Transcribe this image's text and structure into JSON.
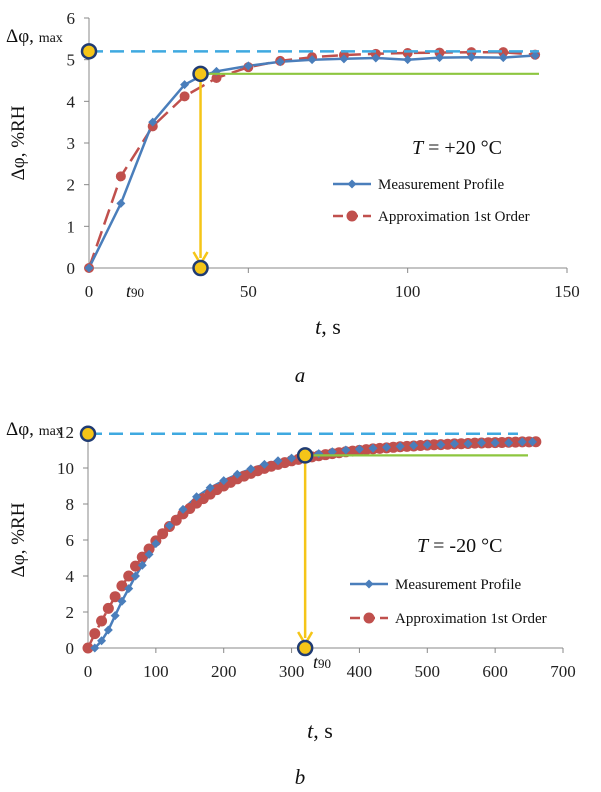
{
  "colors": {
    "measurement": "#4a7ebb",
    "approximation": "#c0504d",
    "max_line": "#3fa9e0",
    "t90_line": "#8dc63f",
    "marker": "#f5c518",
    "marker_ring": "#1f3b73",
    "axis": "#888888"
  },
  "chart_data": [
    {
      "type": "line",
      "panel_label": "a",
      "temperature_label": "T = +20 °C",
      "ylabel": "Δφ, %RH",
      "xlabel": "t, s",
      "ymax_label": "Δφ, max",
      "t90_label": "t90",
      "xlim": [
        0,
        150
      ],
      "ylim": [
        0,
        6
      ],
      "xticks": [
        "0",
        "50",
        "100",
        "150"
      ],
      "yticks": [
        "0",
        "1",
        "2",
        "3",
        "4",
        "5",
        "6"
      ],
      "legend": [
        "Measurement Profile",
        "Approximation 1st Order"
      ],
      "delta_max": 5.2,
      "level_90": 4.66,
      "t90": 35,
      "series": [
        {
          "name": "Measurement Profile",
          "x": [
            0,
            10,
            20,
            30,
            35,
            40,
            50,
            60,
            70,
            80,
            90,
            100,
            110,
            120,
            130,
            140
          ],
          "y": [
            0,
            1.55,
            3.5,
            4.4,
            4.6,
            4.72,
            4.85,
            4.95,
            5.0,
            5.02,
            5.04,
            5.0,
            5.05,
            5.06,
            5.05,
            5.1
          ]
        },
        {
          "name": "Approximation 1st Order",
          "x": [
            0,
            10,
            20,
            30,
            40,
            50,
            60,
            70,
            80,
            90,
            100,
            110,
            120,
            130,
            140
          ],
          "y": [
            0,
            2.2,
            3.4,
            4.12,
            4.56,
            4.82,
            4.97,
            5.06,
            5.11,
            5.14,
            5.16,
            5.17,
            5.18,
            5.18,
            5.12
          ]
        }
      ]
    },
    {
      "type": "line",
      "panel_label": "b",
      "temperature_label": "T = -20 °C",
      "ylabel": "Δφ, %RH",
      "xlabel": "t, s",
      "ymax_label": "Δφ, max",
      "t90_label": "t90",
      "xlim": [
        0,
        700
      ],
      "ylim": [
        0,
        12
      ],
      "xticks": [
        "0",
        "100",
        "200",
        "300",
        "400",
        "500",
        "600",
        "700"
      ],
      "yticks": [
        "0",
        "2",
        "4",
        "6",
        "8",
        "10",
        "12"
      ],
      "legend": [
        "Measurement Profile",
        "Approximation 1st Order"
      ],
      "delta_max": 11.9,
      "level_90": 10.7,
      "t90": 320,
      "series": [
        {
          "name": "Measurement Profile",
          "x": [
            10,
            20,
            30,
            40,
            50,
            60,
            70,
            80,
            90,
            100,
            120,
            140,
            160,
            180,
            200,
            220,
            240,
            260,
            280,
            300,
            320,
            340,
            360,
            380,
            400,
            420,
            440,
            460,
            480,
            500,
            520,
            540,
            560,
            580,
            600,
            620,
            640,
            655
          ],
          "y": [
            0,
            0.4,
            1.0,
            1.8,
            2.6,
            3.3,
            4.0,
            4.6,
            5.2,
            5.8,
            6.8,
            7.7,
            8.4,
            8.9,
            9.3,
            9.65,
            9.95,
            10.2,
            10.4,
            10.55,
            10.7,
            10.8,
            10.9,
            11.0,
            11.05,
            11.1,
            11.15,
            11.2,
            11.25,
            11.3,
            11.3,
            11.35,
            11.35,
            11.4,
            11.4,
            11.4,
            11.45,
            11.45
          ]
        },
        {
          "name": "Approximation 1st Order",
          "x": [
            0,
            10,
            20,
            30,
            40,
            50,
            60,
            70,
            80,
            90,
            100,
            110,
            120,
            130,
            140,
            150,
            160,
            170,
            180,
            190,
            200,
            210,
            220,
            230,
            240,
            250,
            260,
            270,
            280,
            290,
            300,
            310,
            320,
            330,
            340,
            350,
            360,
            370,
            380,
            390,
            400,
            410,
            420,
            430,
            440,
            450,
            460,
            470,
            480,
            490,
            500,
            510,
            520,
            530,
            540,
            550,
            560,
            570,
            580,
            590,
            600,
            610,
            620,
            630,
            640,
            650,
            660
          ],
          "y": [
            0,
            0.8,
            1.5,
            2.2,
            2.85,
            3.45,
            4.0,
            4.55,
            5.05,
            5.5,
            5.95,
            6.35,
            6.75,
            7.1,
            7.45,
            7.75,
            8.05,
            8.3,
            8.55,
            8.8,
            9.0,
            9.2,
            9.4,
            9.55,
            9.7,
            9.85,
            9.98,
            10.1,
            10.2,
            10.3,
            10.4,
            10.48,
            10.55,
            10.62,
            10.68,
            10.74,
            10.8,
            10.85,
            10.9,
            10.94,
            10.98,
            11.02,
            11.06,
            11.09,
            11.12,
            11.15,
            11.18,
            11.2,
            11.22,
            11.25,
            11.27,
            11.29,
            11.3,
            11.32,
            11.34,
            11.35,
            11.36,
            11.38,
            11.39,
            11.4,
            11.41,
            11.42,
            11.43,
            11.44,
            11.45,
            11.45,
            11.46
          ]
        }
      ]
    }
  ]
}
